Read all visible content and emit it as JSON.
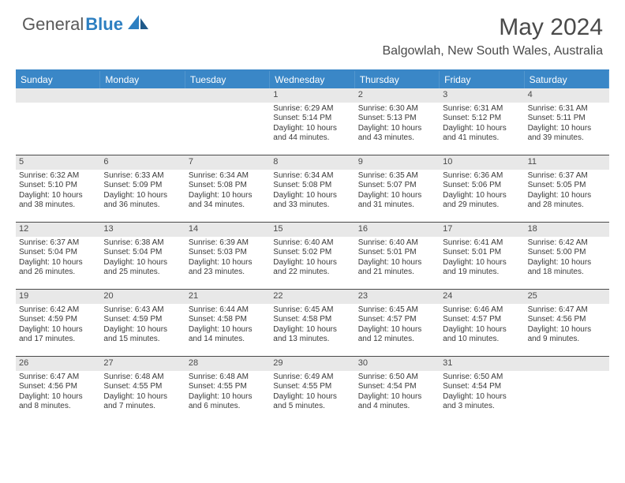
{
  "brand": {
    "part1": "General",
    "part2": "Blue"
  },
  "title": "May 2024",
  "location": "Balgowlah, New South Wales, Australia",
  "colors": {
    "header_bg": "#3a87c7",
    "header_text": "#ffffff",
    "daynum_bg": "#e8e8e8",
    "text": "#3a3a3a",
    "rule": "#4a4a4a",
    "logo_blue": "#2d7fc1",
    "logo_gray": "#5a5a5a"
  },
  "day_names": [
    "Sunday",
    "Monday",
    "Tuesday",
    "Wednesday",
    "Thursday",
    "Friday",
    "Saturday"
  ],
  "weeks": [
    [
      null,
      null,
      null,
      {
        "d": "1",
        "sr": "6:29 AM",
        "ss": "5:14 PM",
        "dl1": "Daylight: 10 hours",
        "dl2": "and 44 minutes."
      },
      {
        "d": "2",
        "sr": "6:30 AM",
        "ss": "5:13 PM",
        "dl1": "Daylight: 10 hours",
        "dl2": "and 43 minutes."
      },
      {
        "d": "3",
        "sr": "6:31 AM",
        "ss": "5:12 PM",
        "dl1": "Daylight: 10 hours",
        "dl2": "and 41 minutes."
      },
      {
        "d": "4",
        "sr": "6:31 AM",
        "ss": "5:11 PM",
        "dl1": "Daylight: 10 hours",
        "dl2": "and 39 minutes."
      }
    ],
    [
      {
        "d": "5",
        "sr": "6:32 AM",
        "ss": "5:10 PM",
        "dl1": "Daylight: 10 hours",
        "dl2": "and 38 minutes."
      },
      {
        "d": "6",
        "sr": "6:33 AM",
        "ss": "5:09 PM",
        "dl1": "Daylight: 10 hours",
        "dl2": "and 36 minutes."
      },
      {
        "d": "7",
        "sr": "6:34 AM",
        "ss": "5:08 PM",
        "dl1": "Daylight: 10 hours",
        "dl2": "and 34 minutes."
      },
      {
        "d": "8",
        "sr": "6:34 AM",
        "ss": "5:08 PM",
        "dl1": "Daylight: 10 hours",
        "dl2": "and 33 minutes."
      },
      {
        "d": "9",
        "sr": "6:35 AM",
        "ss": "5:07 PM",
        "dl1": "Daylight: 10 hours",
        "dl2": "and 31 minutes."
      },
      {
        "d": "10",
        "sr": "6:36 AM",
        "ss": "5:06 PM",
        "dl1": "Daylight: 10 hours",
        "dl2": "and 29 minutes."
      },
      {
        "d": "11",
        "sr": "6:37 AM",
        "ss": "5:05 PM",
        "dl1": "Daylight: 10 hours",
        "dl2": "and 28 minutes."
      }
    ],
    [
      {
        "d": "12",
        "sr": "6:37 AM",
        "ss": "5:04 PM",
        "dl1": "Daylight: 10 hours",
        "dl2": "and 26 minutes."
      },
      {
        "d": "13",
        "sr": "6:38 AM",
        "ss": "5:04 PM",
        "dl1": "Daylight: 10 hours",
        "dl2": "and 25 minutes."
      },
      {
        "d": "14",
        "sr": "6:39 AM",
        "ss": "5:03 PM",
        "dl1": "Daylight: 10 hours",
        "dl2": "and 23 minutes."
      },
      {
        "d": "15",
        "sr": "6:40 AM",
        "ss": "5:02 PM",
        "dl1": "Daylight: 10 hours",
        "dl2": "and 22 minutes."
      },
      {
        "d": "16",
        "sr": "6:40 AM",
        "ss": "5:01 PM",
        "dl1": "Daylight: 10 hours",
        "dl2": "and 21 minutes."
      },
      {
        "d": "17",
        "sr": "6:41 AM",
        "ss": "5:01 PM",
        "dl1": "Daylight: 10 hours",
        "dl2": "and 19 minutes."
      },
      {
        "d": "18",
        "sr": "6:42 AM",
        "ss": "5:00 PM",
        "dl1": "Daylight: 10 hours",
        "dl2": "and 18 minutes."
      }
    ],
    [
      {
        "d": "19",
        "sr": "6:42 AM",
        "ss": "4:59 PM",
        "dl1": "Daylight: 10 hours",
        "dl2": "and 17 minutes."
      },
      {
        "d": "20",
        "sr": "6:43 AM",
        "ss": "4:59 PM",
        "dl1": "Daylight: 10 hours",
        "dl2": "and 15 minutes."
      },
      {
        "d": "21",
        "sr": "6:44 AM",
        "ss": "4:58 PM",
        "dl1": "Daylight: 10 hours",
        "dl2": "and 14 minutes."
      },
      {
        "d": "22",
        "sr": "6:45 AM",
        "ss": "4:58 PM",
        "dl1": "Daylight: 10 hours",
        "dl2": "and 13 minutes."
      },
      {
        "d": "23",
        "sr": "6:45 AM",
        "ss": "4:57 PM",
        "dl1": "Daylight: 10 hours",
        "dl2": "and 12 minutes."
      },
      {
        "d": "24",
        "sr": "6:46 AM",
        "ss": "4:57 PM",
        "dl1": "Daylight: 10 hours",
        "dl2": "and 10 minutes."
      },
      {
        "d": "25",
        "sr": "6:47 AM",
        "ss": "4:56 PM",
        "dl1": "Daylight: 10 hours",
        "dl2": "and 9 minutes."
      }
    ],
    [
      {
        "d": "26",
        "sr": "6:47 AM",
        "ss": "4:56 PM",
        "dl1": "Daylight: 10 hours",
        "dl2": "and 8 minutes."
      },
      {
        "d": "27",
        "sr": "6:48 AM",
        "ss": "4:55 PM",
        "dl1": "Daylight: 10 hours",
        "dl2": "and 7 minutes."
      },
      {
        "d": "28",
        "sr": "6:48 AM",
        "ss": "4:55 PM",
        "dl1": "Daylight: 10 hours",
        "dl2": "and 6 minutes."
      },
      {
        "d": "29",
        "sr": "6:49 AM",
        "ss": "4:55 PM",
        "dl1": "Daylight: 10 hours",
        "dl2": "and 5 minutes."
      },
      {
        "d": "30",
        "sr": "6:50 AM",
        "ss": "4:54 PM",
        "dl1": "Daylight: 10 hours",
        "dl2": "and 4 minutes."
      },
      {
        "d": "31",
        "sr": "6:50 AM",
        "ss": "4:54 PM",
        "dl1": "Daylight: 10 hours",
        "dl2": "and 3 minutes."
      },
      null
    ]
  ],
  "labels": {
    "sunrise_prefix": "Sunrise: ",
    "sunset_prefix": "Sunset: "
  }
}
